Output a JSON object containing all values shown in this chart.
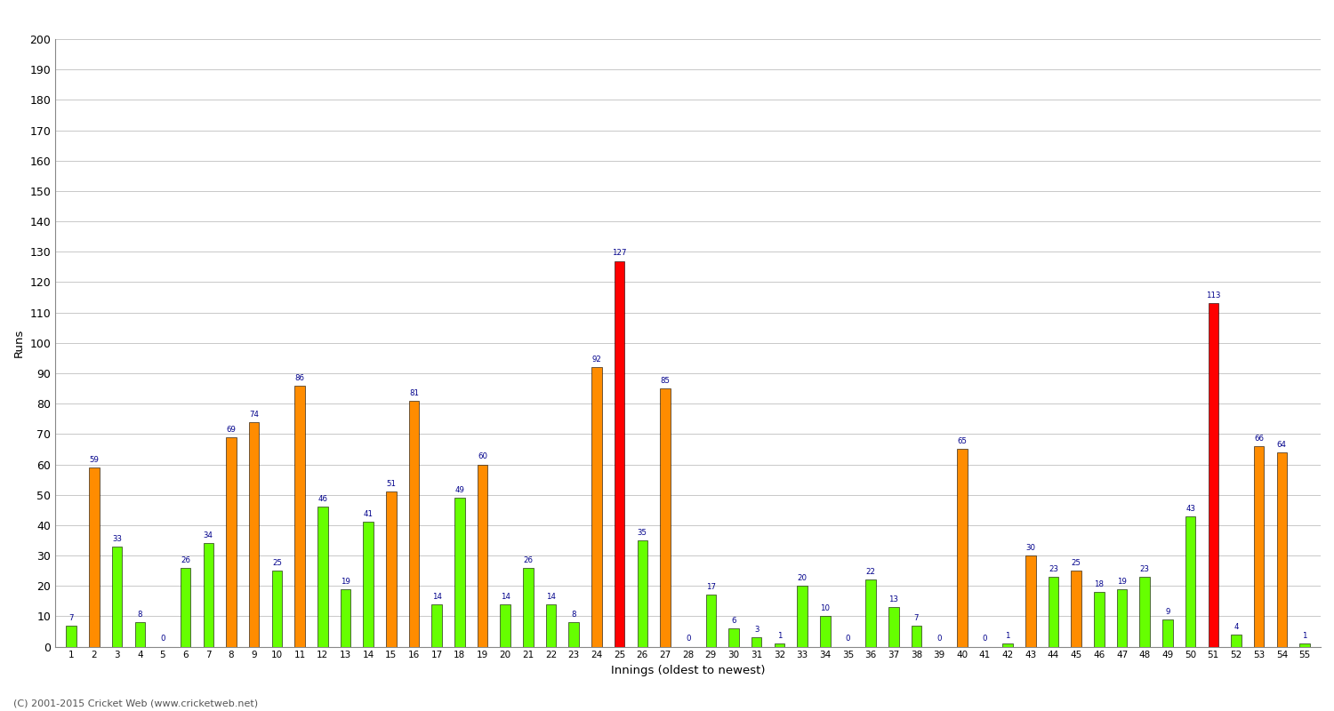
{
  "innings_data": [
    [
      1,
      7,
      "green"
    ],
    [
      2,
      59,
      "orange"
    ],
    [
      3,
      33,
      "green"
    ],
    [
      4,
      8,
      "green"
    ],
    [
      5,
      0,
      "green"
    ],
    [
      6,
      26,
      "green"
    ],
    [
      7,
      34,
      "green"
    ],
    [
      8,
      69,
      "orange"
    ],
    [
      9,
      74,
      "orange"
    ],
    [
      10,
      25,
      "green"
    ],
    [
      11,
      86,
      "orange"
    ],
    [
      12,
      46,
      "green"
    ],
    [
      13,
      19,
      "green"
    ],
    [
      14,
      41,
      "green"
    ],
    [
      15,
      51,
      "orange"
    ],
    [
      16,
      81,
      "orange"
    ],
    [
      17,
      14,
      "green"
    ],
    [
      18,
      49,
      "green"
    ],
    [
      19,
      60,
      "orange"
    ],
    [
      20,
      14,
      "green"
    ],
    [
      21,
      26,
      "green"
    ],
    [
      22,
      14,
      "green"
    ],
    [
      23,
      8,
      "green"
    ],
    [
      24,
      92,
      "orange"
    ],
    [
      25,
      127,
      "red"
    ],
    [
      26,
      35,
      "green"
    ],
    [
      27,
      85,
      "orange"
    ],
    [
      28,
      0,
      "green"
    ],
    [
      29,
      17,
      "green"
    ],
    [
      30,
      6,
      "green"
    ],
    [
      31,
      3,
      "green"
    ],
    [
      32,
      1,
      "green"
    ],
    [
      33,
      20,
      "green"
    ],
    [
      34,
      10,
      "green"
    ],
    [
      35,
      0,
      "green"
    ],
    [
      36,
      22,
      "green"
    ],
    [
      37,
      13,
      "green"
    ],
    [
      38,
      7,
      "green"
    ],
    [
      39,
      0,
      "green"
    ],
    [
      40,
      65,
      "orange"
    ],
    [
      41,
      0,
      "green"
    ],
    [
      42,
      1,
      "green"
    ],
    [
      43,
      30,
      "orange"
    ],
    [
      44,
      23,
      "green"
    ],
    [
      45,
      25,
      "orange"
    ],
    [
      46,
      18,
      "green"
    ],
    [
      47,
      19,
      "green"
    ],
    [
      48,
      23,
      "green"
    ],
    [
      49,
      9,
      "green"
    ],
    [
      50,
      43,
      "green"
    ],
    [
      51,
      113,
      "red"
    ],
    [
      52,
      4,
      "green"
    ],
    [
      53,
      66,
      "orange"
    ],
    [
      54,
      64,
      "orange"
    ],
    [
      55,
      1,
      "green"
    ]
  ],
  "xlabel": "Innings (oldest to newest)",
  "ylabel": "Runs",
  "ylim": [
    0,
    200
  ],
  "yticks": [
    0,
    10,
    20,
    30,
    40,
    50,
    60,
    70,
    80,
    90,
    100,
    110,
    120,
    130,
    140,
    150,
    160,
    170,
    180,
    190,
    200
  ],
  "orange_color": "#FF8C00",
  "green_color": "#66FF00",
  "red_color": "#FF0000",
  "background_color": "#FFFFFF",
  "grid_color": "#C8C8C8",
  "label_color": "#00008B",
  "footer": "(C) 2001-2015 Cricket Web (www.cricketweb.net)"
}
